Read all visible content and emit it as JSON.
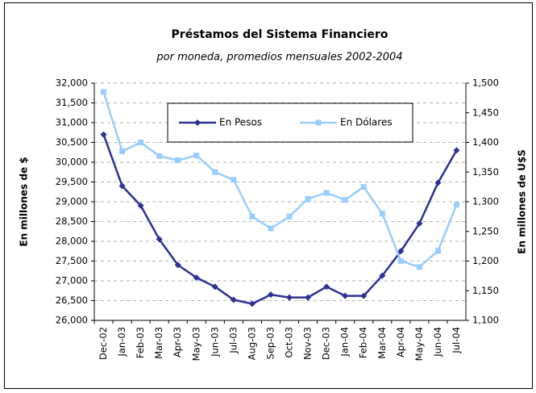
{
  "chart_data": {
    "type": "line",
    "title": "Préstamos del Sistema Financiero",
    "subtitle": "por moneda, promedios mensuales 2002-2004",
    "y_label": "En millones de $",
    "y2_label": "En millones de U$S",
    "categories": [
      "Dec-02",
      "Jan-03",
      "Feb-03",
      "Mar-03",
      "Apr-03",
      "May-03",
      "Jun-03",
      "Jul-03",
      "Aug-03",
      "Sep-03",
      "Oct-03",
      "Nov-03",
      "Dec-03",
      "Jan-04",
      "Feb-04",
      "Mar-04",
      "Apr-04",
      "May-04",
      "Jun-04",
      "Jul-04"
    ],
    "series": [
      {
        "name": "En Pesos",
        "color": "#2e3192",
        "marker": "diamond",
        "values": [
          30700,
          29400,
          28900,
          28050,
          27400,
          27080,
          26850,
          26520,
          26420,
          26650,
          26580,
          26580,
          26850,
          26620,
          26620,
          27130,
          27750,
          28450,
          29480,
          30300
        ]
      },
      {
        "name": "En Dólares",
        "color": "#99ccff",
        "marker": "square",
        "axis": "y2",
        "values": [
          1485,
          1385,
          1400,
          1377,
          1370,
          1378,
          1350,
          1337,
          1275,
          1255,
          1275,
          1305,
          1315,
          1303,
          1325,
          1280,
          1200,
          1190,
          1217,
          1295
        ]
      }
    ],
    "ylim": [
      26000,
      32000
    ],
    "yticks": [
      {
        "value": 26000,
        "label": "26,000"
      },
      {
        "value": 26500,
        "label": "26,500"
      },
      {
        "value": 27000,
        "label": "27,000"
      },
      {
        "value": 27500,
        "label": "27,500"
      },
      {
        "value": 28000,
        "label": "28,000"
      },
      {
        "value": 28500,
        "label": "28,500"
      },
      {
        "value": 29000,
        "label": "29,000"
      },
      {
        "value": 29500,
        "label": "29,500"
      },
      {
        "value": 30000,
        "label": "30,000"
      },
      {
        "value": 30500,
        "label": "30,500"
      },
      {
        "value": 31000,
        "label": "31,000"
      },
      {
        "value": 31500,
        "label": "31,500"
      },
      {
        "value": 32000,
        "label": "32,000"
      }
    ],
    "y2lim": [
      1100,
      1500
    ],
    "y2ticks": [
      {
        "value": 1100,
        "label": "1,100"
      },
      {
        "value": 1150,
        "label": "1,150"
      },
      {
        "value": 1200,
        "label": "1,200"
      },
      {
        "value": 1250,
        "label": "1,250"
      },
      {
        "value": 1300,
        "label": "1,300"
      },
      {
        "value": 1350,
        "label": "1,350"
      },
      {
        "value": 1400,
        "label": "1,400"
      },
      {
        "value": 1450,
        "label": "1,450"
      },
      {
        "value": 1500,
        "label": "1,500"
      }
    ],
    "grid": true
  }
}
